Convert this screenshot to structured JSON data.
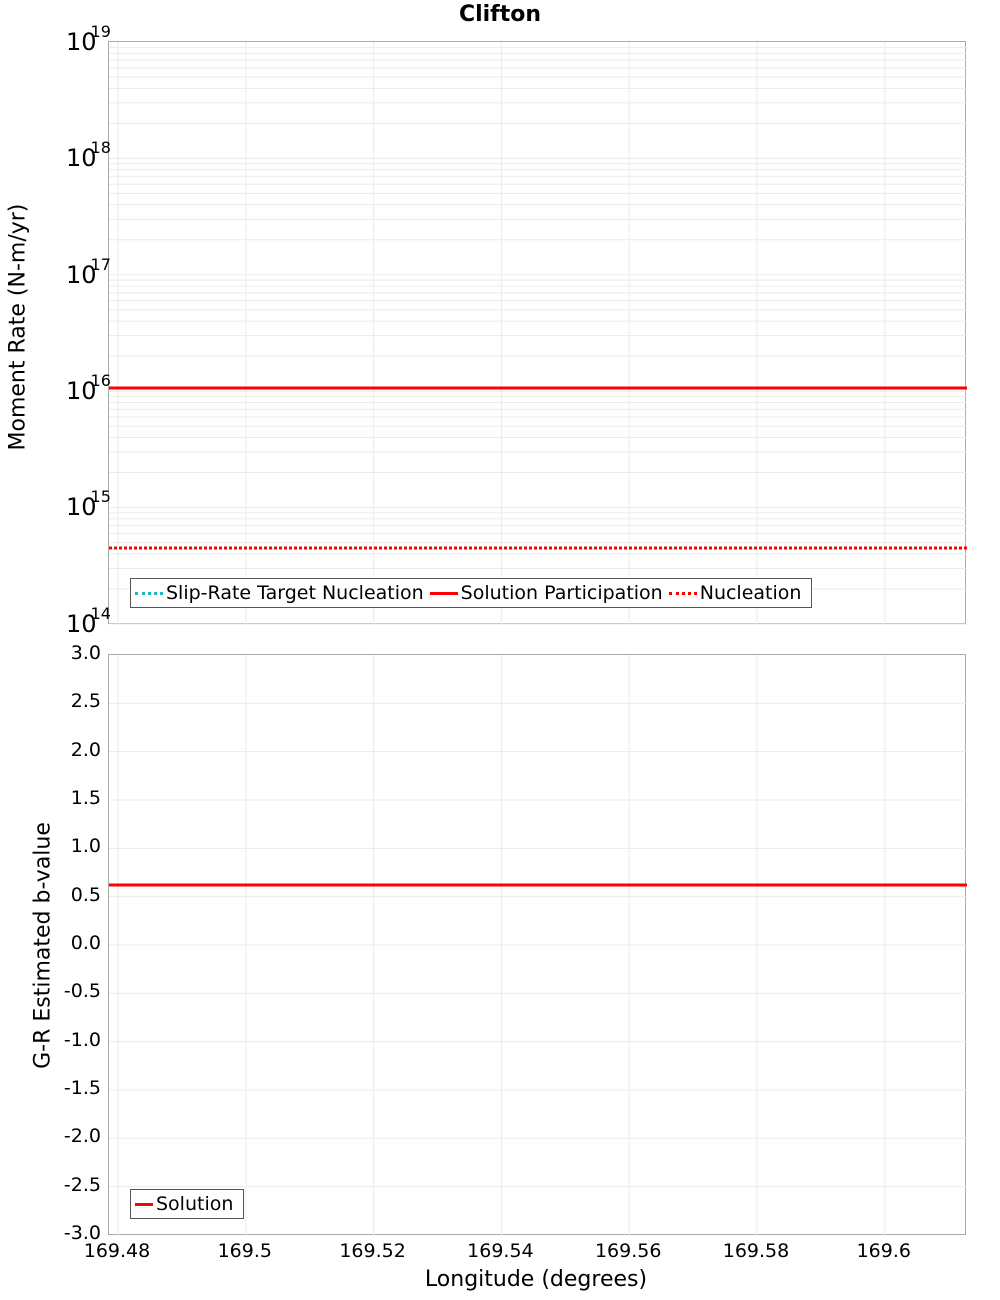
{
  "title": "Clifton",
  "chart_data": [
    {
      "type": "line",
      "title": "Clifton",
      "xlabel": "Longitude (degrees)",
      "ylabel": "Moment Rate (N-m/yr)",
      "yscale": "log",
      "ylim": [
        100000000000000.0,
        1e+19
      ],
      "xlim": [
        169.4786,
        169.6127
      ],
      "y_ticks": [
        "10^14",
        "10^15",
        "10^16",
        "10^17",
        "10^18",
        "10^19"
      ],
      "x_ticks": [
        "169.48",
        "169.5",
        "169.52",
        "169.54",
        "169.56",
        "169.58",
        "169.6"
      ],
      "grid": true,
      "legend_position": "lower-left",
      "series": [
        {
          "name": "Slip-Rate Target Nucleation",
          "style": "dotted",
          "color": "#1eb4c0",
          "x": [
            169.4786,
            169.6127
          ],
          "values": [
            450000000000000.0,
            450000000000000.0
          ]
        },
        {
          "name": "Solution Participation",
          "style": "solid",
          "color": "#ff0000",
          "x": [
            169.4786,
            169.6127
          ],
          "values": [
            1.07e+16,
            1.07e+16
          ]
        },
        {
          "name": "Nucleation",
          "style": "dotted",
          "color": "#ff0000",
          "x": [
            169.4786,
            169.6127
          ],
          "values": [
            450000000000000.0,
            450000000000000.0
          ]
        }
      ]
    },
    {
      "type": "line",
      "xlabel": "Longitude (degrees)",
      "ylabel": "G-R Estimated b-value",
      "ylim": [
        -3.0,
        3.0
      ],
      "xlim": [
        169.4786,
        169.6127
      ],
      "y_ticks": [
        "3.0",
        "2.5",
        "2.0",
        "1.5",
        "1.0",
        "0.5",
        "0.0",
        "-0.5",
        "-1.0",
        "-1.5",
        "-2.0",
        "-2.5",
        "-3.0"
      ],
      "x_ticks": [
        "169.48",
        "169.5",
        "169.52",
        "169.54",
        "169.56",
        "169.58",
        "169.6"
      ],
      "grid": true,
      "legend_position": "lower-left",
      "series": [
        {
          "name": "Solution",
          "style": "solid",
          "color": "#ff0000",
          "x": [
            169.4786,
            169.6127
          ],
          "values": [
            0.62,
            0.62
          ]
        }
      ]
    }
  ],
  "top": {
    "ylabel": "Moment Rate (N-m/yr)",
    "yticks": [
      {
        "base": "10",
        "exp": "19"
      },
      {
        "base": "10",
        "exp": "18"
      },
      {
        "base": "10",
        "exp": "17"
      },
      {
        "base": "10",
        "exp": "16"
      },
      {
        "base": "10",
        "exp": "15"
      },
      {
        "base": "10",
        "exp": "14"
      }
    ],
    "legend": [
      "Slip-Rate Target Nucleation",
      "Solution Participation",
      "Nucleation"
    ]
  },
  "bottom": {
    "ylabel": "G-R Estimated b-value",
    "yticks": [
      "3.0",
      "2.5",
      "2.0",
      "1.5",
      "1.0",
      "0.5",
      "0.0",
      "-0.5",
      "-1.0",
      "-1.5",
      "-2.0",
      "-2.5",
      "-3.0"
    ],
    "legend": [
      "Solution"
    ]
  },
  "xaxis": {
    "label": "Longitude (degrees)",
    "ticks": [
      "169.48",
      "169.5",
      "169.52",
      "169.54",
      "169.56",
      "169.58",
      "169.6"
    ]
  },
  "colors": {
    "red": "#ff0000",
    "cyan": "#1eb4c0",
    "grid": "#ebebeb",
    "frame": "#aaaaaa"
  }
}
